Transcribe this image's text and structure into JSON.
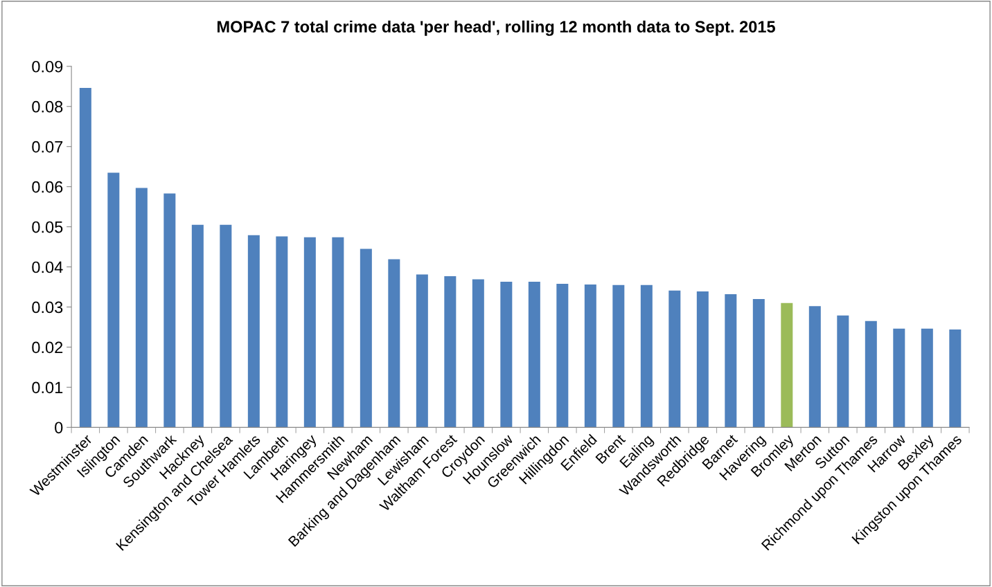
{
  "chart_data": {
    "type": "bar",
    "title": "MOPAC 7 total crime data 'per head', rolling 12 month data to Sept. 2015",
    "categories": [
      "Westminster",
      "Islington",
      "Camden",
      "Southwark",
      "Hackney",
      "Kensington and Chelsea",
      "Tower Hamlets",
      "Lambeth",
      "Haringey",
      "Hammersmith",
      "Newham",
      "Barking and Dagenham",
      "Lewisham",
      "Waltham Forest",
      "Croydon",
      "Hounslow",
      "Greenwich",
      "Hillingdon",
      "Enfield",
      "Brent",
      "Ealing",
      "Wandsworth",
      "Redbridge",
      "Barnet",
      "Havering",
      "Bromley",
      "Merton",
      "Sutton",
      "Richmond upon Thames",
      "Harrow",
      "Bexley",
      "Kingston upon Thames"
    ],
    "values": [
      0.0846,
      0.0635,
      0.0597,
      0.0583,
      0.0505,
      0.0505,
      0.0479,
      0.0476,
      0.0474,
      0.0474,
      0.0445,
      0.0419,
      0.0381,
      0.0377,
      0.0369,
      0.0363,
      0.0363,
      0.0358,
      0.0356,
      0.0355,
      0.0355,
      0.0341,
      0.0339,
      0.0332,
      0.032,
      0.031,
      0.0302,
      0.0279,
      0.0265,
      0.0246,
      0.0246,
      0.0244
    ],
    "colors": [
      "#4f81bd",
      "#4f81bd",
      "#4f81bd",
      "#4f81bd",
      "#4f81bd",
      "#4f81bd",
      "#4f81bd",
      "#4f81bd",
      "#4f81bd",
      "#4f81bd",
      "#4f81bd",
      "#4f81bd",
      "#4f81bd",
      "#4f81bd",
      "#4f81bd",
      "#4f81bd",
      "#4f81bd",
      "#4f81bd",
      "#4f81bd",
      "#4f81bd",
      "#4f81bd",
      "#4f81bd",
      "#4f81bd",
      "#4f81bd",
      "#4f81bd",
      "#9bbb59",
      "#4f81bd",
      "#4f81bd",
      "#4f81bd",
      "#4f81bd",
      "#4f81bd",
      "#4f81bd"
    ],
    "ylim": [
      0,
      0.09
    ],
    "yticks": [
      {
        "value": 0,
        "label": "0"
      },
      0.01,
      0.02,
      0.03,
      0.04,
      0.05,
      0.06,
      0.07,
      0.08,
      0.09
    ],
    "grid": false,
    "legend": false
  }
}
